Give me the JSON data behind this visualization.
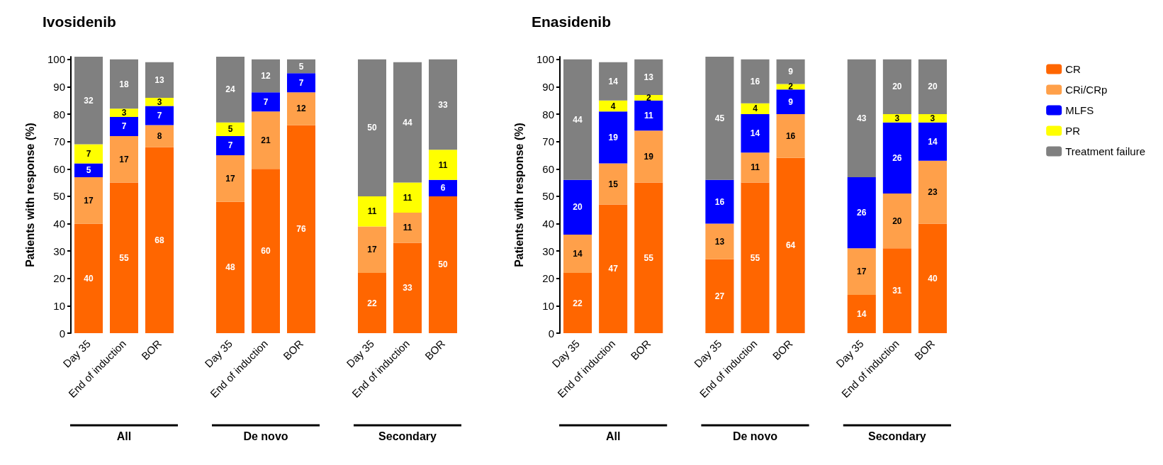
{
  "chart_data": [
    {
      "type": "bar",
      "stacked": true,
      "title": "Ivosidenib",
      "ylabel": "Patients with response (%)",
      "categories": [
        "Day 35",
        "End of induction",
        "BOR",
        null,
        "Day 35",
        "End of induction",
        "BOR",
        null,
        "Day 35",
        "End of induction",
        "BOR"
      ],
      "ylim": [
        0,
        101
      ],
      "yticks": [
        0,
        10,
        20,
        30,
        40,
        50,
        60,
        70,
        80,
        90,
        100
      ],
      "grid": false,
      "legend": false,
      "data_labels": true,
      "annotations": [
        "All",
        "De novo",
        "Secondary"
      ],
      "series": [
        {
          "color": "#ff6600",
          "values": [
            40,
            55,
            68,
            null,
            48,
            60,
            76,
            null,
            22,
            33,
            50
          ]
        },
        {
          "color": "#ffa04a",
          "values": [
            17,
            17,
            8,
            null,
            17,
            21,
            12,
            null,
            17,
            11,
            null
          ]
        },
        {
          "color": "#0000ff",
          "values": [
            5,
            7,
            7,
            null,
            7,
            7,
            7,
            null,
            null,
            null,
            6
          ]
        },
        {
          "color": "#ffff00",
          "values": [
            7,
            3,
            3,
            null,
            5,
            null,
            null,
            null,
            11,
            11,
            11
          ]
        },
        {
          "color": "#808080",
          "values": [
            32,
            18,
            13,
            null,
            24,
            12,
            5,
            null,
            50,
            44,
            33
          ]
        }
      ]
    },
    {
      "type": "bar",
      "stacked": true,
      "title": "Enasidenib",
      "ylabel": "Patients with response (%)",
      "categories": [
        "Day 35",
        "End of induction",
        "BOR",
        null,
        "Day 35",
        "End of induction",
        "BOR",
        null,
        "Day 35",
        "End of induction",
        "BOR"
      ],
      "ylim": [
        0,
        101
      ],
      "yticks": [
        0,
        10,
        20,
        30,
        40,
        50,
        60,
        70,
        80,
        90,
        100
      ],
      "grid": false,
      "legend": "right",
      "data_labels": true,
      "annotations": [
        "All",
        "De novo",
        "Secondary"
      ],
      "series": [
        {
          "name": "CR",
          "color": "#ff6600",
          "values": [
            22,
            47,
            55,
            null,
            27,
            55,
            64,
            null,
            14,
            31,
            40
          ]
        },
        {
          "name": "CRi/CRp",
          "color": "#ffa04a",
          "values": [
            14,
            15,
            19,
            null,
            13,
            11,
            16,
            null,
            17,
            20,
            23
          ]
        },
        {
          "name": "MLFS",
          "color": "#0000ff",
          "values": [
            20,
            19,
            11,
            null,
            16,
            14,
            9,
            null,
            26,
            26,
            14
          ]
        },
        {
          "name": "PR",
          "color": "#ffff00",
          "values": [
            null,
            4,
            2,
            null,
            null,
            4,
            2,
            null,
            null,
            3,
            3
          ]
        },
        {
          "name": "Treatment failure",
          "color": "#808080",
          "values": [
            44,
            14,
            13,
            null,
            45,
            16,
            9,
            null,
            43,
            20,
            20
          ]
        }
      ]
    }
  ]
}
